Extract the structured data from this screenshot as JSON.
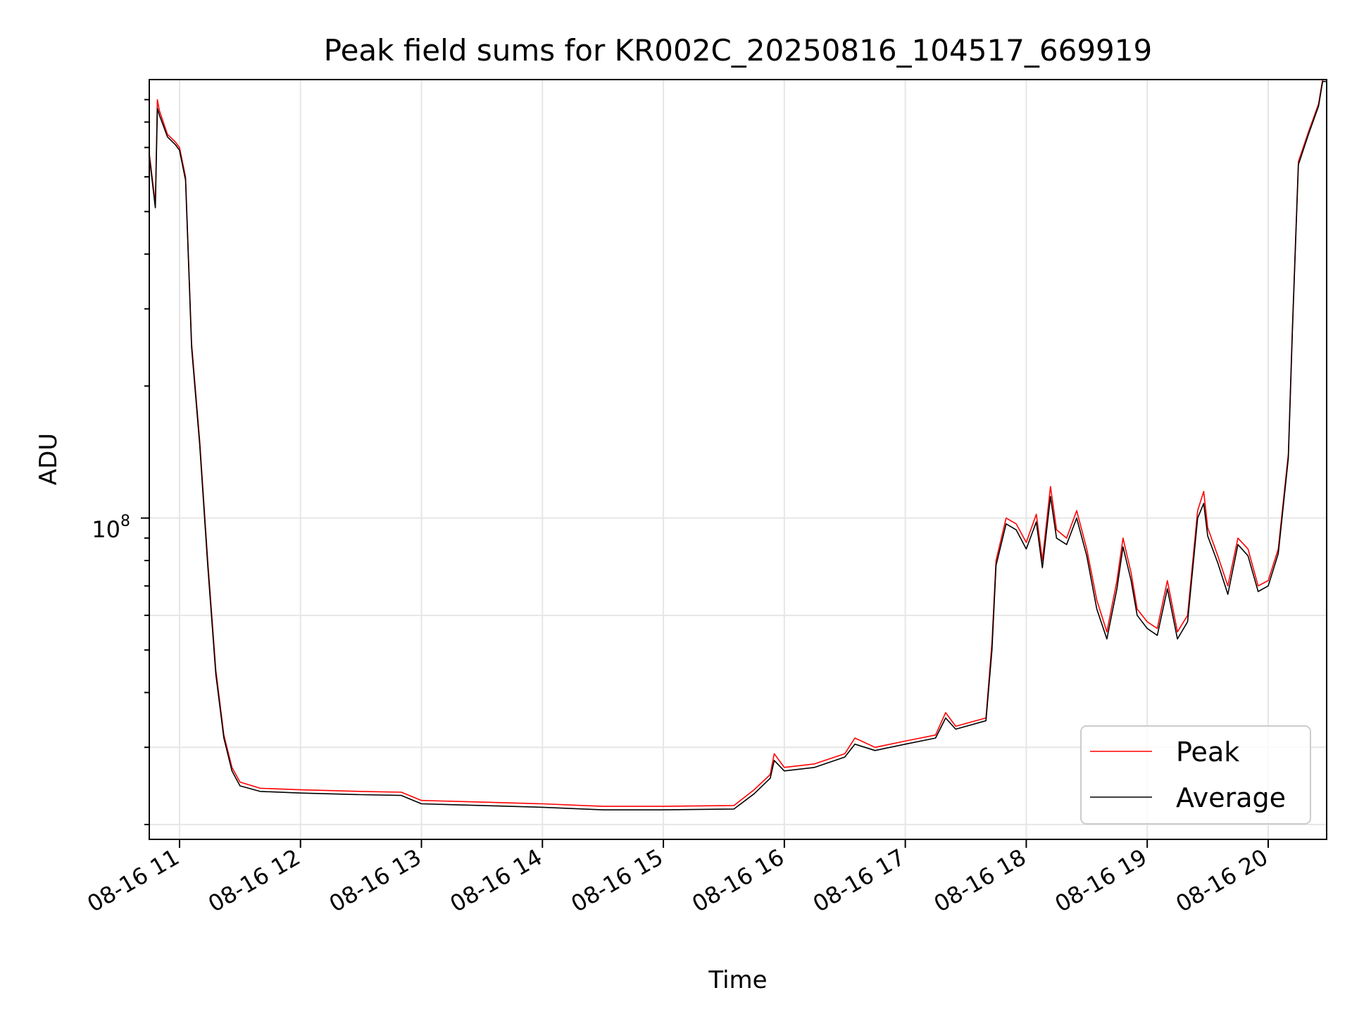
{
  "chart_data": {
    "type": "line",
    "title": "Peak field sums for KR002C_20250816_104517_669919",
    "xlabel": "Time",
    "ylabel": "ADU",
    "x_tick_labels": [
      "08-16 11",
      "08-16 12",
      "08-16 13",
      "08-16 14",
      "08-16 15",
      "08-16 16",
      "08-16 17",
      "08-16 18",
      "08-16 19",
      "08-16 20"
    ],
    "y_tick_label_base": "10",
    "y_tick_label_exponent": "8",
    "y_scale": "log",
    "xlim": [
      "08-16 10:45",
      "08-16 20:29"
    ],
    "ylim": [
      18500000,
      1000000000
    ],
    "grid": true,
    "legend_position": "lower-right",
    "series": [
      {
        "name": "Peak",
        "color": "#ff0000",
        "points": [
          [
            "08-16 10:45",
            680000000
          ],
          [
            "08-16 10:48",
            520000000
          ],
          [
            "08-16 10:49",
            900000000
          ],
          [
            "08-16 10:50",
            850000000
          ],
          [
            "08-16 10:54",
            750000000
          ],
          [
            "08-16 10:58",
            720000000
          ],
          [
            "08-16 11:00",
            700000000
          ],
          [
            "08-16 11:03",
            600000000
          ],
          [
            "08-16 11:06",
            250000000
          ],
          [
            "08-16 11:10",
            150000000
          ],
          [
            "08-16 11:14",
            80000000
          ],
          [
            "08-16 11:18",
            45000000
          ],
          [
            "08-16 11:22",
            32000000
          ],
          [
            "08-16 11:26",
            27000000
          ],
          [
            "08-16 11:30",
            25000000
          ],
          [
            "08-16 11:40",
            24200000
          ],
          [
            "08-16 12:00",
            24000000
          ],
          [
            "08-16 12:30",
            23800000
          ],
          [
            "08-16 12:50",
            23700000
          ],
          [
            "08-16 13:00",
            22700000
          ],
          [
            "08-16 13:30",
            22500000
          ],
          [
            "08-16 14:00",
            22300000
          ],
          [
            "08-16 14:30",
            22000000
          ],
          [
            "08-16 15:00",
            22000000
          ],
          [
            "08-16 15:35",
            22100000
          ],
          [
            "08-16 15:45",
            24000000
          ],
          [
            "08-16 15:53",
            26000000
          ],
          [
            "08-16 15:55",
            29000000
          ],
          [
            "08-16 16:00",
            27000000
          ],
          [
            "08-16 16:15",
            27500000
          ],
          [
            "08-16 16:30",
            29000000
          ],
          [
            "08-16 16:35",
            31500000
          ],
          [
            "08-16 16:45",
            30000000
          ],
          [
            "08-16 17:00",
            31000000
          ],
          [
            "08-16 17:15",
            32000000
          ],
          [
            "08-16 17:20",
            36000000
          ],
          [
            "08-16 17:25",
            33500000
          ],
          [
            "08-16 17:40",
            35000000
          ],
          [
            "08-16 17:43",
            52000000
          ],
          [
            "08-16 17:45",
            80000000
          ],
          [
            "08-16 17:50",
            100000000
          ],
          [
            "08-16 17:55",
            97000000
          ],
          [
            "08-16 18:00",
            88000000
          ],
          [
            "08-16 18:05",
            102000000
          ],
          [
            "08-16 18:08",
            80000000
          ],
          [
            "08-16 18:12",
            118000000
          ],
          [
            "08-16 18:15",
            94000000
          ],
          [
            "08-16 18:20",
            90000000
          ],
          [
            "08-16 18:25",
            104000000
          ],
          [
            "08-16 18:30",
            85000000
          ],
          [
            "08-16 18:35",
            65000000
          ],
          [
            "08-16 18:40",
            55000000
          ],
          [
            "08-16 18:45",
            72000000
          ],
          [
            "08-16 18:48",
            90000000
          ],
          [
            "08-16 18:52",
            75000000
          ],
          [
            "08-16 18:55",
            62000000
          ],
          [
            "08-16 19:00",
            58000000
          ],
          [
            "08-16 19:05",
            56000000
          ],
          [
            "08-16 19:10",
            72000000
          ],
          [
            "08-16 19:15",
            55000000
          ],
          [
            "08-16 19:20",
            60000000
          ],
          [
            "08-16 19:25",
            104000000
          ],
          [
            "08-16 19:28",
            115000000
          ],
          [
            "08-16 19:30",
            95000000
          ],
          [
            "08-16 19:35",
            82000000
          ],
          [
            "08-16 19:40",
            70000000
          ],
          [
            "08-16 19:45",
            90000000
          ],
          [
            "08-16 19:50",
            85000000
          ],
          [
            "08-16 19:55",
            70000000
          ],
          [
            "08-16 20:00",
            72000000
          ],
          [
            "08-16 20:05",
            85000000
          ],
          [
            "08-16 20:10",
            140000000
          ],
          [
            "08-16 20:12",
            270000000
          ],
          [
            "08-16 20:15",
            650000000
          ],
          [
            "08-16 20:20",
            760000000
          ],
          [
            "08-16 20:25",
            880000000
          ],
          [
            "08-16 20:27",
            1000000000
          ],
          [
            "08-16 20:29",
            1000000000
          ]
        ]
      },
      {
        "name": "Average",
        "color": "#000000",
        "points": [
          [
            "08-16 10:45",
            670000000
          ],
          [
            "08-16 10:48",
            510000000
          ],
          [
            "08-16 10:49",
            860000000
          ],
          [
            "08-16 10:50",
            830000000
          ],
          [
            "08-16 10:54",
            740000000
          ],
          [
            "08-16 10:58",
            710000000
          ],
          [
            "08-16 11:00",
            690000000
          ],
          [
            "08-16 11:03",
            590000000
          ],
          [
            "08-16 11:06",
            245000000
          ],
          [
            "08-16 11:10",
            147000000
          ],
          [
            "08-16 11:14",
            78000000
          ],
          [
            "08-16 11:18",
            44000000
          ],
          [
            "08-16 11:22",
            31500000
          ],
          [
            "08-16 11:26",
            26500000
          ],
          [
            "08-16 11:30",
            24500000
          ],
          [
            "08-16 11:40",
            23800000
          ],
          [
            "08-16 12:00",
            23600000
          ],
          [
            "08-16 12:30",
            23400000
          ],
          [
            "08-16 12:50",
            23300000
          ],
          [
            "08-16 13:00",
            22300000
          ],
          [
            "08-16 13:30",
            22100000
          ],
          [
            "08-16 14:00",
            21900000
          ],
          [
            "08-16 14:30",
            21600000
          ],
          [
            "08-16 15:00",
            21600000
          ],
          [
            "08-16 15:35",
            21700000
          ],
          [
            "08-16 15:45",
            23500000
          ],
          [
            "08-16 15:53",
            25500000
          ],
          [
            "08-16 15:55",
            28000000
          ],
          [
            "08-16 16:00",
            26500000
          ],
          [
            "08-16 16:15",
            27000000
          ],
          [
            "08-16 16:30",
            28500000
          ],
          [
            "08-16 16:35",
            30500000
          ],
          [
            "08-16 16:45",
            29500000
          ],
          [
            "08-16 17:00",
            30500000
          ],
          [
            "08-16 17:15",
            31500000
          ],
          [
            "08-16 17:20",
            35000000
          ],
          [
            "08-16 17:25",
            33000000
          ],
          [
            "08-16 17:40",
            34500000
          ],
          [
            "08-16 17:43",
            50000000
          ],
          [
            "08-16 17:45",
            78000000
          ],
          [
            "08-16 17:50",
            97000000
          ],
          [
            "08-16 17:55",
            94000000
          ],
          [
            "08-16 18:00",
            85000000
          ],
          [
            "08-16 18:05",
            98000000
          ],
          [
            "08-16 18:08",
            77000000
          ],
          [
            "08-16 18:12",
            112000000
          ],
          [
            "08-16 18:15",
            90000000
          ],
          [
            "08-16 18:20",
            87000000
          ],
          [
            "08-16 18:25",
            100000000
          ],
          [
            "08-16 18:30",
            82000000
          ],
          [
            "08-16 18:35",
            62000000
          ],
          [
            "08-16 18:40",
            53000000
          ],
          [
            "08-16 18:45",
            69000000
          ],
          [
            "08-16 18:48",
            86000000
          ],
          [
            "08-16 18:52",
            72000000
          ],
          [
            "08-16 18:55",
            60000000
          ],
          [
            "08-16 19:00",
            56000000
          ],
          [
            "08-16 19:05",
            54000000
          ],
          [
            "08-16 19:10",
            69000000
          ],
          [
            "08-16 19:15",
            53000000
          ],
          [
            "08-16 19:20",
            58000000
          ],
          [
            "08-16 19:25",
            100000000
          ],
          [
            "08-16 19:28",
            108000000
          ],
          [
            "08-16 19:30",
            91000000
          ],
          [
            "08-16 19:35",
            79000000
          ],
          [
            "08-16 19:40",
            67000000
          ],
          [
            "08-16 19:45",
            87000000
          ],
          [
            "08-16 19:50",
            82000000
          ],
          [
            "08-16 19:55",
            68000000
          ],
          [
            "08-16 20:00",
            70000000
          ],
          [
            "08-16 20:05",
            83000000
          ],
          [
            "08-16 20:10",
            137000000
          ],
          [
            "08-16 20:12",
            265000000
          ],
          [
            "08-16 20:15",
            640000000
          ],
          [
            "08-16 20:20",
            750000000
          ],
          [
            "08-16 20:25",
            870000000
          ],
          [
            "08-16 20:27",
            990000000
          ],
          [
            "08-16 20:29",
            990000000
          ]
        ]
      }
    ]
  }
}
